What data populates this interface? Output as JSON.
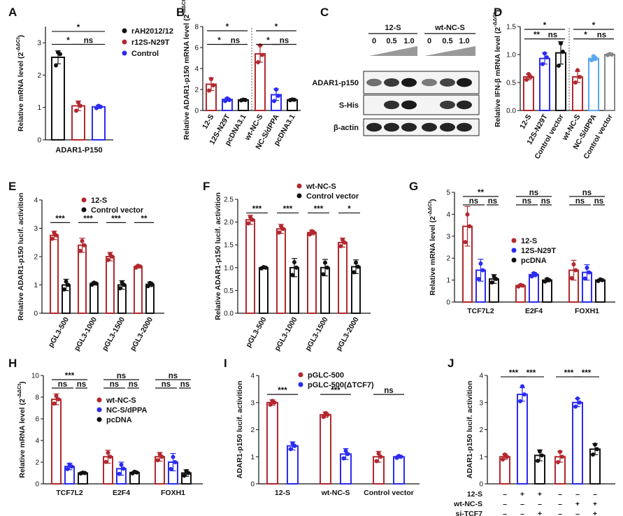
{
  "colors": {
    "black": "#111111",
    "red": "#b2282e",
    "blue": "#2b2bf0",
    "lightblue": "#5aa7f2",
    "gray": "#888888",
    "black_dot": "#111111"
  },
  "chart_data": [
    {
      "id": "A",
      "type": "bar",
      "label": "A",
      "ylabel": "Relative mRNA level (2^-ΔΔCt)",
      "ylim": [
        0,
        3.5
      ],
      "yticks": [
        0,
        1,
        2,
        3
      ],
      "groups": [
        {
          "name": "ADAR1-P150",
          "bars": [
            {
              "series": "rAH2012/12",
              "value": 2.55,
              "err": 0.2,
              "color": "black",
              "dots": [
                2.3,
                2.65,
                2.7
              ]
            },
            {
              "series": "r12S-N29T",
              "value": 1.05,
              "err": 0.15,
              "color": "red",
              "dots": [
                0.9,
                1.05,
                1.15
              ]
            },
            {
              "series": "Control",
              "value": 1.02,
              "err": 0.05,
              "color": "blue",
              "dots": [
                0.98,
                1.02,
                1.05
              ]
            }
          ]
        }
      ],
      "legend": [
        {
          "name": "rAH2012/12",
          "color": "black"
        },
        {
          "name": "r12S-N29T",
          "color": "red"
        },
        {
          "name": "Control",
          "color": "blue"
        }
      ],
      "sig": [
        {
          "text": "*",
          "from": 0,
          "to": 2,
          "level": 3.35
        },
        {
          "text": "*",
          "from": 0,
          "to": 1,
          "level": 2.95
        },
        {
          "text": "ns",
          "from": 1,
          "to": 2,
          "level": 2.95
        }
      ]
    },
    {
      "id": "B",
      "type": "bar",
      "label": "B",
      "ylabel": "Relative ADAR1-p150 mRNA level (2^-ΔΔCt)",
      "ylim": [
        0,
        8
      ],
      "yticks": [
        0,
        2,
        4,
        6,
        8
      ],
      "bars": [
        {
          "name": "12-S",
          "value": 2.5,
          "err": 0.6,
          "color": "red",
          "dots": [
            1.9,
            2.4,
            3.0
          ]
        },
        {
          "name": "12S-N29T",
          "value": 1.05,
          "err": 0.15,
          "color": "blue",
          "dots": [
            0.9,
            1.0,
            1.15
          ]
        },
        {
          "name": "pcDNA3.1",
          "value": 1.0,
          "err": 0.05,
          "color": "black",
          "dots": [
            0.97,
            1.0,
            1.03
          ]
        },
        {
          "name": "wt-NC-S",
          "value": 5.4,
          "err": 0.8,
          "color": "red",
          "dots": [
            4.6,
            5.3,
            6.2
          ]
        },
        {
          "name": "NC-S/dPPA",
          "value": 1.5,
          "err": 0.55,
          "color": "blue",
          "dots": [
            0.9,
            1.4,
            2.0
          ]
        },
        {
          "name": "pcDNA3.1",
          "value": 1.02,
          "err": 0.05,
          "color": "black",
          "dots": [
            0.98,
            1.02,
            1.05
          ]
        }
      ],
      "sig": [
        {
          "text": "*",
          "from": 0,
          "to": 2,
          "level": 7.6
        },
        {
          "text": "*",
          "from": 0,
          "to": 1,
          "level": 6.3
        },
        {
          "text": "ns",
          "from": 1,
          "to": 2,
          "level": 6.3
        },
        {
          "text": "*",
          "from": 3,
          "to": 5,
          "level": 7.6
        },
        {
          "text": "*",
          "from": 3,
          "to": 4,
          "level": 6.3
        },
        {
          "text": "ns",
          "from": 4,
          "to": 5,
          "level": 6.3
        }
      ]
    },
    {
      "id": "D",
      "type": "bar",
      "label": "D",
      "ylabel": "Relative IFN-β mRNA level (2^-ΔΔCt)",
      "ylim": [
        0,
        1.5
      ],
      "yticks": [
        0.0,
        0.5,
        1.0,
        1.5
      ],
      "bars": [
        {
          "name": "12-S",
          "value": 0.6,
          "err": 0.05,
          "color": "red",
          "dots": [
            0.55,
            0.6,
            0.65
          ]
        },
        {
          "name": "12S-N29T",
          "value": 0.93,
          "err": 0.1,
          "color": "blue",
          "dots": [
            0.83,
            0.95,
            1.02
          ]
        },
        {
          "name": "Control vector",
          "value": 1.03,
          "err": 0.2,
          "color": "black",
          "dots": [
            0.8,
            1.05,
            1.2
          ]
        },
        {
          "name": "wt-NC-S",
          "value": 0.6,
          "err": 0.1,
          "color": "red",
          "dots": [
            0.5,
            0.6,
            0.72
          ]
        },
        {
          "name": "NC-S/dPPA",
          "value": 0.93,
          "err": 0.04,
          "color": "lightblue",
          "dots": [
            0.9,
            0.93,
            0.97
          ]
        },
        {
          "name": "Control vector",
          "value": 1.0,
          "err": 0.02,
          "color": "gray",
          "dots": [
            0.99,
            1.0,
            1.01
          ]
        }
      ],
      "sig": [
        {
          "text": "*",
          "from": 0,
          "to": 2,
          "level": 1.45
        },
        {
          "text": "**",
          "from": 0,
          "to": 1,
          "level": 1.28
        },
        {
          "text": "ns",
          "from": 1,
          "to": 2,
          "level": 1.28
        },
        {
          "text": "*",
          "from": 3,
          "to": 5,
          "level": 1.45
        },
        {
          "text": "*",
          "from": 3,
          "to": 4,
          "level": 1.28
        },
        {
          "text": "ns",
          "from": 4,
          "to": 5,
          "level": 1.28
        }
      ]
    },
    {
      "id": "E",
      "type": "bar",
      "label": "E",
      "ylabel": "Relative ADAR1-p150 lucif. activition",
      "ylim": [
        0,
        4
      ],
      "yticks": [
        0,
        1,
        2,
        3,
        4
      ],
      "categories": [
        "pGL3-500",
        "pGL3-1000",
        "pGL3-1500",
        "pGL3-2000"
      ],
      "series": [
        {
          "name": "12-S",
          "color": "red",
          "values": [
            2.75,
            2.4,
            2.0,
            1.65
          ],
          "err": [
            0.15,
            0.25,
            0.15,
            0.05
          ]
        },
        {
          "name": "Control vector",
          "color": "black",
          "values": [
            1.0,
            1.05,
            1.0,
            1.02
          ],
          "err": [
            0.2,
            0.05,
            0.15,
            0.08
          ]
        }
      ],
      "sig": [
        "***",
        "***",
        "***",
        "**"
      ],
      "sig_level": 3.2
    },
    {
      "id": "F",
      "type": "bar",
      "label": "F",
      "ylabel": "Relative ADAR1-p150 lucif. activition",
      "ylim": [
        0,
        2.5
      ],
      "yticks": [
        0.0,
        0.5,
        1.0,
        1.5,
        2.0,
        2.5
      ],
      "categories": [
        "pGL3-500",
        "pGL3-1000",
        "pGL3-1500",
        "pGL3-2000"
      ],
      "series": [
        {
          "name": "wt-NC-S",
          "color": "red",
          "values": [
            2.05,
            1.85,
            1.77,
            1.55
          ],
          "err": [
            0.1,
            0.1,
            0.05,
            0.1
          ]
        },
        {
          "name": "Control vector",
          "color": "black",
          "values": [
            1.0,
            1.0,
            1.0,
            1.02
          ],
          "err": [
            0.02,
            0.2,
            0.18,
            0.15
          ]
        }
      ],
      "sig": [
        "***",
        "***",
        "***",
        "*"
      ],
      "sig_level": 2.2
    },
    {
      "id": "G",
      "type": "bar",
      "label": "G",
      "ylabel": "Relative mRNA level (2^-ΔΔCt)",
      "ylim": [
        0,
        5
      ],
      "yticks": [
        0,
        1,
        2,
        3,
        4,
        5
      ],
      "categories": [
        "TCF7L2",
        "E2F4",
        "FOXH1"
      ],
      "series": [
        {
          "name": "12-S",
          "color": "red",
          "values": [
            3.45,
            0.75,
            1.45
          ],
          "err": [
            0.9,
            0.05,
            0.45
          ]
        },
        {
          "name": "12S-N29T",
          "color": "blue",
          "values": [
            1.45,
            1.25,
            1.35
          ],
          "err": [
            0.5,
            0.1,
            0.35
          ]
        },
        {
          "name": "pcDNA",
          "color": "black",
          "values": [
            1.05,
            1.0,
            1.0
          ],
          "err": [
            0.2,
            0.08,
            0.05
          ]
        }
      ],
      "sig_top": [
        "**",
        "ns",
        "ns"
      ],
      "sig_pairs": [
        [
          "ns",
          "ns"
        ],
        [
          "ns",
          "ns"
        ],
        [
          "ns",
          "ns"
        ]
      ]
    },
    {
      "id": "H",
      "type": "bar",
      "label": "H",
      "ylabel": "Relative mRNA level (2^-ΔΔCt)",
      "ylim": [
        0,
        10
      ],
      "yticks": [
        0,
        2,
        4,
        6,
        8,
        10
      ],
      "categories": [
        "TCF7L2",
        "E2F4",
        "FOXH1"
      ],
      "series": [
        {
          "name": "wt-NC-S",
          "color": "red",
          "values": [
            7.8,
            2.5,
            2.5
          ],
          "err": [
            0.5,
            0.6,
            0.4
          ]
        },
        {
          "name": "NC-S/dPPA",
          "color": "blue",
          "values": [
            1.6,
            1.4,
            2.0
          ],
          "err": [
            0.3,
            0.6,
            0.8
          ]
        },
        {
          "name": "pcDNA",
          "color": "black",
          "values": [
            1.0,
            1.05,
            1.0
          ],
          "err": [
            0.05,
            0.1,
            0.3
          ]
        }
      ],
      "sig_top": [
        "***",
        "ns",
        "ns"
      ],
      "sig_pairs": [
        [
          "ns",
          "ns"
        ],
        [
          "ns",
          "ns"
        ],
        [
          "ns",
          "ns"
        ]
      ]
    },
    {
      "id": "I",
      "type": "bar",
      "label": "I",
      "ylabel": "ADAR1-p150 lucif. activition",
      "ylim": [
        0,
        4
      ],
      "yticks": [
        0,
        1,
        2,
        3,
        4
      ],
      "categories": [
        "12-S",
        "wt-NC-S",
        "Control vector"
      ],
      "series": [
        {
          "name": "pGLC-500",
          "color": "red",
          "values": [
            3.0,
            2.55,
            1.0
          ],
          "err": [
            0.1,
            0.1,
            0.2
          ]
        },
        {
          "name": "pGLC-500(ΔTCF7)",
          "color": "blue",
          "values": [
            1.4,
            1.1,
            1.0
          ],
          "err": [
            0.15,
            0.2,
            0.05
          ]
        }
      ],
      "sig": [
        "***",
        "***",
        "ns"
      ],
      "sig_level": 3.3
    },
    {
      "id": "J",
      "type": "bar",
      "label": "J",
      "ylabel": "ADAR1-p150 lucif. activition",
      "ylim": [
        0,
        4
      ],
      "yticks": [
        0,
        1,
        2,
        3,
        4
      ],
      "bars": [
        {
          "value": 1.0,
          "err": 0.1,
          "color": "red",
          "dots": [
            0.9,
            1.0,
            1.08
          ]
        },
        {
          "value": 3.3,
          "err": 0.25,
          "color": "blue",
          "dots": [
            3.05,
            3.3,
            3.6
          ]
        },
        {
          "value": 1.05,
          "err": 0.2,
          "color": "black",
          "dots": [
            0.85,
            1.05,
            1.2
          ]
        },
        {
          "value": 1.0,
          "err": 0.2,
          "color": "red",
          "dots": [
            0.8,
            1.0,
            1.18
          ]
        },
        {
          "value": 3.0,
          "err": 0.15,
          "color": "blue",
          "dots": [
            2.85,
            3.0,
            3.15
          ]
        },
        {
          "value": 1.28,
          "err": 0.2,
          "color": "black",
          "dots": [
            1.08,
            1.28,
            1.45
          ]
        }
      ],
      "sig_pairs": [
        {
          "text": "***",
          "from": 0,
          "to": 1
        },
        {
          "text": "***",
          "from": 1,
          "to": 2
        },
        {
          "text": "***",
          "from": 3,
          "to": 4
        },
        {
          "text": "***",
          "from": 4,
          "to": 5
        }
      ],
      "sig_level": 3.95,
      "table": [
        {
          "label": "12-S",
          "values": [
            "–",
            "+",
            "+",
            "–",
            "–",
            "–"
          ]
        },
        {
          "label": "wt-NC-S",
          "values": [
            "–",
            "–",
            "–",
            "–",
            "+",
            "+"
          ]
        },
        {
          "label": "si-TCF7",
          "values": [
            "–",
            "–",
            "+",
            "–",
            "–",
            "+"
          ]
        }
      ]
    }
  ],
  "western_blot": {
    "label": "C",
    "groups": [
      "12-S",
      "wt-NC-S"
    ],
    "doses": [
      "0",
      "0.5",
      "1.0",
      "0",
      "0.5",
      "1.0"
    ],
    "bands": [
      "ADAR1-p150",
      "S-His",
      "β-actin"
    ],
    "intensity": {
      "ADAR1-p150": [
        0.55,
        0.8,
        0.95,
        0.5,
        0.75,
        0.95
      ],
      "S-His": [
        0.0,
        0.85,
        0.95,
        0.0,
        0.8,
        0.9
      ],
      "β-actin": [
        0.9,
        0.9,
        0.9,
        0.9,
        0.9,
        0.9
      ]
    }
  }
}
